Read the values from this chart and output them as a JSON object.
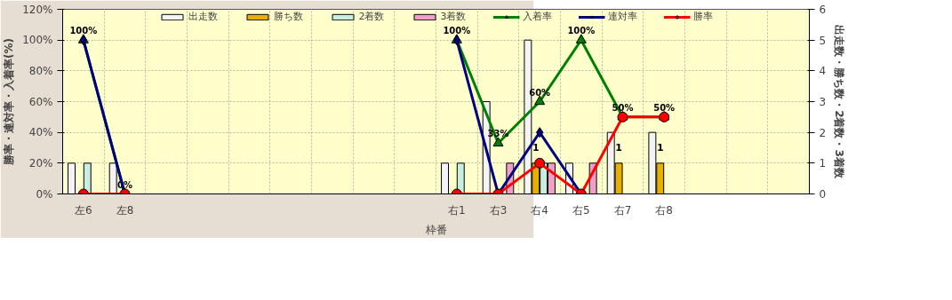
{
  "chart_data": {
    "type": "bar",
    "xlabel": "枠番",
    "ylabel": "勝率・連対率・入着率(%)",
    "y2label": "出走数・勝ち数・2着数・3着数",
    "categories": [
      "左6",
      "左8",
      null,
      null,
      null,
      null,
      null,
      null,
      null,
      "右1",
      "右3",
      "右4",
      "右5",
      "右7",
      "右8",
      null,
      null,
      null
    ],
    "series": [
      {
        "name": "出走数",
        "axis": "y2",
        "color": "#f4f4f4",
        "values": [
          1,
          1,
          null,
          null,
          null,
          null,
          null,
          null,
          null,
          1,
          3,
          5,
          1,
          2,
          2,
          null,
          null,
          null
        ]
      },
      {
        "name": "勝ち数",
        "axis": "y2",
        "color": "#e6b000",
        "values": [
          null,
          null,
          null,
          null,
          null,
          null,
          null,
          null,
          null,
          null,
          null,
          1,
          null,
          1,
          1,
          null,
          null,
          null
        ],
        "value_labels": [
          null,
          null,
          null,
          null,
          null,
          null,
          null,
          null,
          null,
          null,
          null,
          "1",
          null,
          "1",
          "1",
          null,
          null,
          null
        ]
      },
      {
        "name": "2着数",
        "axis": "y2",
        "color": "#c8eee0",
        "values": [
          1,
          null,
          null,
          null,
          null,
          null,
          null,
          null,
          null,
          1,
          null,
          1,
          null,
          null,
          null,
          null,
          null,
          null
        ]
      },
      {
        "name": "3着数",
        "axis": "y2",
        "color": "#f0a0c8",
        "values": [
          null,
          null,
          null,
          null,
          null,
          null,
          null,
          null,
          null,
          null,
          1,
          1,
          1,
          null,
          null,
          null,
          null,
          null
        ]
      },
      {
        "name": "入着率",
        "type": "line",
        "color": "#008000",
        "marker": "triangle",
        "values": [
          100,
          0,
          null,
          null,
          null,
          null,
          null,
          null,
          null,
          100,
          33,
          60,
          100,
          50,
          50,
          null,
          null,
          null
        ],
        "value_labels": [
          "100%",
          "0%",
          null,
          null,
          null,
          null,
          null,
          null,
          null,
          "100%",
          "33%",
          "60%",
          "100%",
          "50%",
          "50%",
          null,
          null,
          null
        ]
      },
      {
        "name": "連対率",
        "type": "line",
        "color": "#000080",
        "marker": "diamond",
        "values": [
          100,
          0,
          null,
          null,
          null,
          null,
          null,
          null,
          null,
          100,
          0,
          40,
          0,
          null,
          null,
          null,
          null,
          null
        ]
      },
      {
        "name": "勝率",
        "type": "line",
        "color": "#ff0000",
        "marker": "circle",
        "values": [
          0,
          0,
          null,
          null,
          null,
          null,
          null,
          null,
          null,
          0,
          0,
          20,
          0,
          50,
          50,
          null,
          null,
          null
        ]
      }
    ],
    "ylim": [
      0,
      120
    ],
    "yticks": [
      {
        "value": 0,
        "label": "0%"
      },
      {
        "value": 20,
        "label": "20%"
      },
      {
        "value": 40,
        "label": "40%"
      },
      {
        "value": 60,
        "label": "60%"
      },
      {
        "value": 80,
        "label": "80%"
      },
      {
        "value": 100,
        "label": "100%"
      },
      {
        "value": 120,
        "label": "120%"
      }
    ],
    "y2lim": [
      0,
      6
    ],
    "y2ticks": [
      0,
      1,
      2,
      3,
      4,
      5,
      6
    ],
    "grid": true,
    "legend": "top"
  }
}
